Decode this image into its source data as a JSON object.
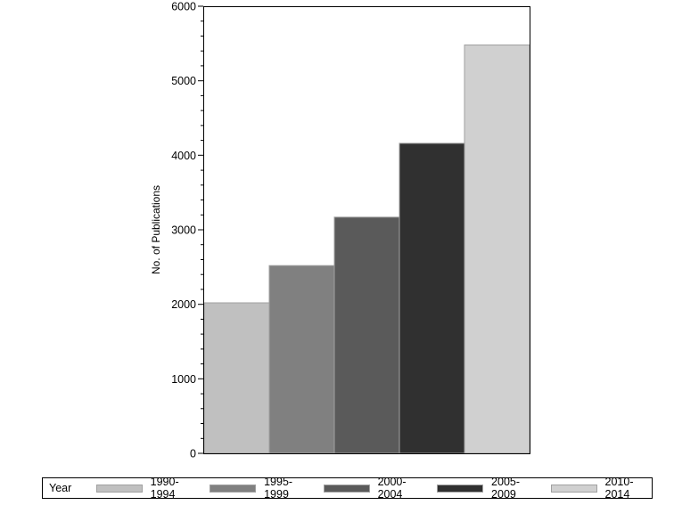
{
  "chart_data": {
    "type": "bar",
    "title": "",
    "xlabel": "",
    "ylabel": "No. of Publications",
    "ylim": [
      0,
      6000
    ],
    "yticks": [
      0,
      1000,
      2000,
      3000,
      4000,
      5000,
      6000
    ],
    "grid": false,
    "legend_position": "bottom",
    "legend_title": "Year",
    "categories": [
      "1990-1994",
      "1995-1999",
      "2000-2004",
      "2005-2009",
      "2010-2014"
    ],
    "values": [
      2020,
      2520,
      3170,
      4160,
      5480
    ],
    "colors": [
      "#c0c0c0",
      "#808080",
      "#5a5a5a",
      "#303030",
      "#d0d0d0"
    ]
  },
  "axis": {
    "ylabel": "No. of Publications",
    "ticks": [
      "0",
      "1000",
      "2000",
      "3000",
      "4000",
      "5000",
      "6000"
    ]
  },
  "legend": {
    "title": "Year",
    "items": [
      {
        "label": "1990-1994",
        "color": "#c0c0c0"
      },
      {
        "label": "1995-1999",
        "color": "#808080"
      },
      {
        "label": "2000-2004",
        "color": "#5a5a5a"
      },
      {
        "label": "2005-2009",
        "color": "#303030"
      },
      {
        "label": "2010-2014",
        "color": "#d0d0d0"
      }
    ]
  }
}
